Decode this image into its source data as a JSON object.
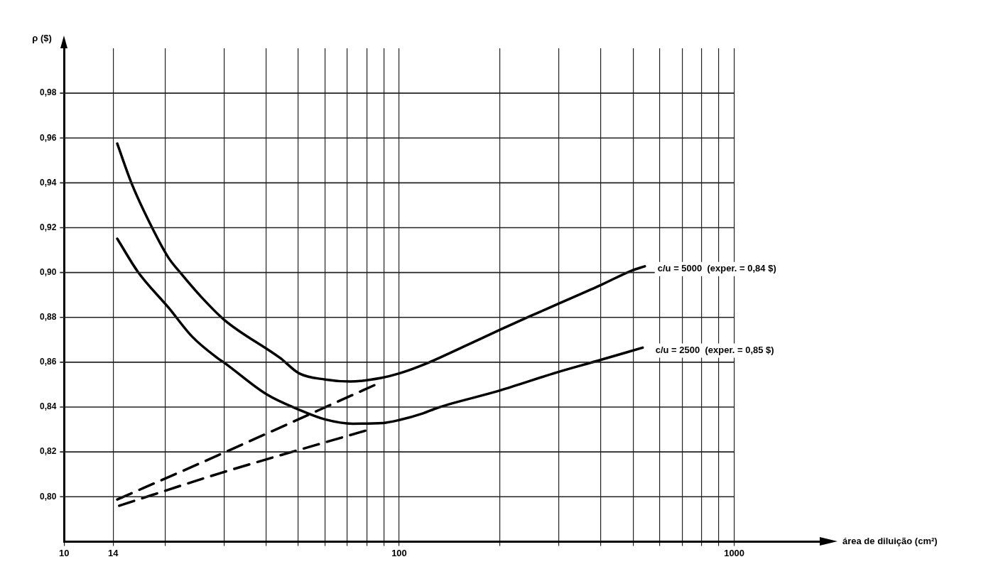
{
  "chart_data": {
    "type": "line",
    "annotations": [
      "área de diluição (cm²)"
    ],
    "ylabel": "ρ ($)",
    "log": "x",
    "grid": true,
    "marker": "none",
    "xlim": [
      10,
      1800
    ],
    "ylim": [
      0.78,
      1.0
    ],
    "xticks": [
      10,
      14,
      {
        "value": 20,
        "label": null
      },
      {
        "value": 30,
        "label": null
      },
      {
        "value": 40,
        "label": null
      },
      {
        "value": 50,
        "label": null
      },
      {
        "value": 60,
        "label": null
      },
      {
        "value": 70,
        "label": null
      },
      {
        "value": 80,
        "label": null
      },
      {
        "value": 90,
        "label": null
      },
      100,
      {
        "value": 200,
        "label": null
      },
      {
        "value": 300,
        "label": null
      },
      {
        "value": 400,
        "label": null
      },
      {
        "value": 500,
        "label": null
      },
      {
        "value": 600,
        "label": null
      },
      {
        "value": 700,
        "label": null
      },
      {
        "value": 800,
        "label": null
      },
      {
        "value": 900,
        "label": null
      },
      1000
    ],
    "yticks": [
      {
        "value": 0.8,
        "label": "0,80"
      },
      {
        "value": 0.82,
        "label": "0,82"
      },
      {
        "value": 0.84,
        "label": "0,84"
      },
      {
        "value": 0.86,
        "label": "0,86"
      },
      {
        "value": 0.88,
        "label": "0,88"
      },
      {
        "value": 0.9,
        "label": "0,90"
      },
      {
        "value": 0.92,
        "label": "0,92"
      },
      {
        "value": 0.94,
        "label": "0,94"
      },
      {
        "value": 0.96,
        "label": "0,96"
      },
      {
        "value": 0.98,
        "label": "0,98"
      }
    ],
    "series": [
      {
        "name": "c/u = 5000  (exper. = 0,84 $)",
        "type": "line",
        "line_style": "solid",
        "color": "#000000",
        "x": [
          14.4,
          15.9,
          18.3,
          20.5,
          22.2,
          25.7,
          30.1,
          44.2,
          50.3,
          60.1,
          71.4,
          88.3,
          100,
          121.8,
          155,
          200,
          245.6,
          296,
          397,
          495,
          541
        ],
        "values": [
          0.9575,
          0.9397,
          0.92,
          0.9065,
          0.9,
          0.889,
          0.8788,
          0.8618,
          0.855,
          0.8523,
          0.8514,
          0.853,
          0.855,
          0.8597,
          0.8668,
          0.8745,
          0.8805,
          0.8858,
          0.8942,
          0.9009,
          0.9028
        ]
      },
      {
        "name": "c/u = 2500  (exper. = 0,85 $)",
        "type": "line",
        "line_style": "solid",
        "color": "#000000",
        "x": [
          14.4,
          16.6,
          20.5,
          24.1,
          28.7,
          30.1,
          40.1,
          50.3,
          60.1,
          72.8,
          89.5,
          100,
          117.8,
          130.3,
          200,
          296,
          390,
          533
        ],
        "values": [
          0.9151,
          0.9003,
          0.8843,
          0.8714,
          0.8618,
          0.8597,
          0.8458,
          0.8388,
          0.8345,
          0.8326,
          0.8329,
          0.8342,
          0.8372,
          0.8397,
          0.8474,
          0.8555,
          0.8606,
          0.8665
        ]
      },
      {
        "type": "line",
        "line_style": "dashed",
        "color": "#000000",
        "x": [
          14.4,
          24.8,
          87.4
        ],
        "values": [
          0.7988,
          0.8142,
          0.8508
        ]
      },
      {
        "type": "line",
        "line_style": "dashed",
        "color": "#000000",
        "x": [
          14.6,
          29.2,
          79.4
        ],
        "values": [
          0.796,
          0.8105,
          0.8295
        ]
      }
    ]
  }
}
